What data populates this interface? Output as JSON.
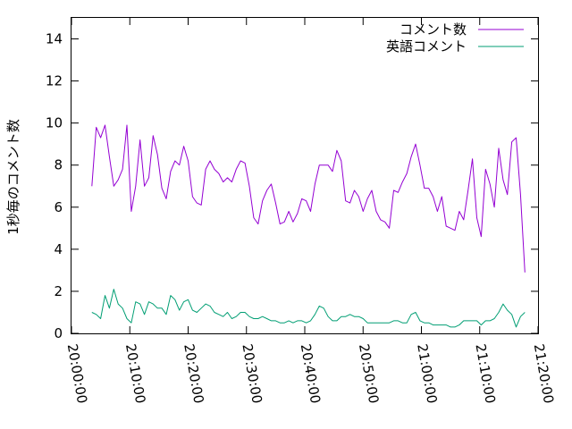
{
  "chart_data": {
    "type": "line",
    "title": "",
    "xlabel": "",
    "ylabel": "1秒毎のコメント数",
    "ylim": [
      0,
      15
    ],
    "yticks": [
      "0",
      "2",
      "4",
      "6",
      "8",
      "10",
      "12",
      "14"
    ],
    "xlim": [
      "20:00:00",
      "21:20:00"
    ],
    "xticks": [
      "20:00:00",
      "20:10:00",
      "20:20:00",
      "20:30:00",
      "20:40:00",
      "20:50:00",
      "21:00:00",
      "21:10:00",
      "21:20:00"
    ],
    "grid": false,
    "legend_position": "top-right",
    "series": [
      {
        "name": "コメント数",
        "color": "#9400d3",
        "points": [
          [
            "20:03:30",
            7.0
          ],
          [
            "20:04:15",
            9.8
          ],
          [
            "20:05:00",
            9.3
          ],
          [
            "20:05:45",
            9.9
          ],
          [
            "20:06:30",
            8.4
          ],
          [
            "20:07:15",
            7.0
          ],
          [
            "20:08:00",
            7.3
          ],
          [
            "20:08:45",
            7.8
          ],
          [
            "20:09:30",
            9.9
          ],
          [
            "20:10:15",
            5.8
          ],
          [
            "20:11:00",
            7.0
          ],
          [
            "20:11:45",
            9.2
          ],
          [
            "20:12:30",
            7.0
          ],
          [
            "20:13:15",
            7.4
          ],
          [
            "20:14:00",
            9.4
          ],
          [
            "20:14:45",
            8.5
          ],
          [
            "20:15:30",
            6.9
          ],
          [
            "20:16:15",
            6.4
          ],
          [
            "20:17:00",
            7.7
          ],
          [
            "20:17:45",
            8.2
          ],
          [
            "20:18:30",
            8.0
          ],
          [
            "20:19:15",
            8.9
          ],
          [
            "20:20:00",
            8.2
          ],
          [
            "20:20:45",
            6.5
          ],
          [
            "20:21:30",
            6.2
          ],
          [
            "20:22:15",
            6.1
          ],
          [
            "20:23:00",
            7.8
          ],
          [
            "20:23:45",
            8.2
          ],
          [
            "20:24:30",
            7.8
          ],
          [
            "20:25:15",
            7.6
          ],
          [
            "20:26:00",
            7.2
          ],
          [
            "20:26:45",
            7.4
          ],
          [
            "20:27:30",
            7.2
          ],
          [
            "20:28:15",
            7.8
          ],
          [
            "20:29:00",
            8.2
          ],
          [
            "20:29:45",
            8.1
          ],
          [
            "20:30:30",
            7.0
          ],
          [
            "20:31:15",
            5.5
          ],
          [
            "20:32:00",
            5.2
          ],
          [
            "20:32:45",
            6.3
          ],
          [
            "20:33:30",
            6.8
          ],
          [
            "20:34:15",
            7.1
          ],
          [
            "20:35:00",
            6.2
          ],
          [
            "20:35:45",
            5.2
          ],
          [
            "20:36:30",
            5.3
          ],
          [
            "20:37:15",
            5.8
          ],
          [
            "20:38:00",
            5.3
          ],
          [
            "20:38:45",
            5.7
          ],
          [
            "20:39:30",
            6.4
          ],
          [
            "20:40:15",
            6.3
          ],
          [
            "20:41:00",
            5.8
          ],
          [
            "20:41:45",
            7.1
          ],
          [
            "20:42:30",
            8.0
          ],
          [
            "20:43:15",
            8.0
          ],
          [
            "20:44:00",
            8.0
          ],
          [
            "20:44:45",
            7.7
          ],
          [
            "20:45:30",
            8.7
          ],
          [
            "20:46:15",
            8.2
          ],
          [
            "20:47:00",
            6.3
          ],
          [
            "20:47:45",
            6.2
          ],
          [
            "20:48:30",
            6.8
          ],
          [
            "20:49:15",
            6.5
          ],
          [
            "20:50:00",
            5.8
          ],
          [
            "20:50:45",
            6.4
          ],
          [
            "20:51:30",
            6.8
          ],
          [
            "20:52:15",
            5.8
          ],
          [
            "20:53:00",
            5.4
          ],
          [
            "20:53:45",
            5.3
          ],
          [
            "20:54:30",
            5.0
          ],
          [
            "20:55:15",
            6.8
          ],
          [
            "20:56:00",
            6.7
          ],
          [
            "20:56:45",
            7.2
          ],
          [
            "20:57:30",
            7.6
          ],
          [
            "20:58:15",
            8.4
          ],
          [
            "20:59:00",
            9.0
          ],
          [
            "20:59:45",
            8.0
          ],
          [
            "21:00:30",
            6.9
          ],
          [
            "21:01:15",
            6.9
          ],
          [
            "21:02:00",
            6.5
          ],
          [
            "21:02:45",
            5.8
          ],
          [
            "21:03:30",
            6.5
          ],
          [
            "21:04:15",
            5.1
          ],
          [
            "21:05:00",
            5.0
          ],
          [
            "21:05:45",
            4.9
          ],
          [
            "21:06:30",
            5.8
          ],
          [
            "21:07:15",
            5.4
          ],
          [
            "21:08:00",
            6.8
          ],
          [
            "21:08:45",
            8.3
          ],
          [
            "21:09:30",
            5.5
          ],
          [
            "21:10:15",
            4.6
          ],
          [
            "21:11:00",
            7.8
          ],
          [
            "21:11:45",
            7.1
          ],
          [
            "21:12:30",
            6.0
          ],
          [
            "21:13:15",
            8.8
          ],
          [
            "21:14:00",
            7.3
          ],
          [
            "21:14:45",
            6.6
          ],
          [
            "21:15:30",
            9.1
          ],
          [
            "21:16:15",
            9.3
          ],
          [
            "21:17:00",
            6.6
          ],
          [
            "21:17:45",
            2.9
          ]
        ]
      },
      {
        "name": "英語コメント",
        "color": "#009e73",
        "points": [
          [
            "20:03:30",
            1.0
          ],
          [
            "20:04:15",
            0.9
          ],
          [
            "20:05:00",
            0.7
          ],
          [
            "20:05:45",
            1.8
          ],
          [
            "20:06:30",
            1.2
          ],
          [
            "20:07:15",
            2.1
          ],
          [
            "20:08:00",
            1.4
          ],
          [
            "20:08:45",
            1.2
          ],
          [
            "20:09:30",
            0.7
          ],
          [
            "20:10:15",
            0.5
          ],
          [
            "20:11:00",
            1.5
          ],
          [
            "20:11:45",
            1.4
          ],
          [
            "20:12:30",
            0.9
          ],
          [
            "20:13:15",
            1.5
          ],
          [
            "20:14:00",
            1.4
          ],
          [
            "20:14:45",
            1.2
          ],
          [
            "20:15:30",
            1.2
          ],
          [
            "20:16:15",
            0.9
          ],
          [
            "20:17:00",
            1.8
          ],
          [
            "20:17:45",
            1.6
          ],
          [
            "20:18:30",
            1.1
          ],
          [
            "20:19:15",
            1.5
          ],
          [
            "20:20:00",
            1.6
          ],
          [
            "20:20:45",
            1.1
          ],
          [
            "20:21:30",
            1.0
          ],
          [
            "20:22:15",
            1.2
          ],
          [
            "20:23:00",
            1.4
          ],
          [
            "20:23:45",
            1.3
          ],
          [
            "20:24:30",
            1.0
          ],
          [
            "20:25:15",
            0.9
          ],
          [
            "20:26:00",
            0.8
          ],
          [
            "20:26:45",
            1.0
          ],
          [
            "20:27:30",
            0.7
          ],
          [
            "20:28:15",
            0.8
          ],
          [
            "20:29:00",
            1.0
          ],
          [
            "20:29:45",
            1.0
          ],
          [
            "20:30:30",
            0.8
          ],
          [
            "20:31:15",
            0.7
          ],
          [
            "20:32:00",
            0.7
          ],
          [
            "20:32:45",
            0.8
          ],
          [
            "20:33:30",
            0.7
          ],
          [
            "20:34:15",
            0.6
          ],
          [
            "20:35:00",
            0.6
          ],
          [
            "20:35:45",
            0.5
          ],
          [
            "20:36:30",
            0.5
          ],
          [
            "20:37:15",
            0.6
          ],
          [
            "20:38:00",
            0.5
          ],
          [
            "20:38:45",
            0.6
          ],
          [
            "20:39:30",
            0.6
          ],
          [
            "20:40:15",
            0.5
          ],
          [
            "20:41:00",
            0.6
          ],
          [
            "20:41:45",
            0.9
          ],
          [
            "20:42:30",
            1.3
          ],
          [
            "20:43:15",
            1.2
          ],
          [
            "20:44:00",
            0.8
          ],
          [
            "20:44:45",
            0.6
          ],
          [
            "20:45:30",
            0.6
          ],
          [
            "20:46:15",
            0.8
          ],
          [
            "20:47:00",
            0.8
          ],
          [
            "20:47:45",
            0.9
          ],
          [
            "20:48:30",
            0.8
          ],
          [
            "20:49:15",
            0.8
          ],
          [
            "20:50:00",
            0.7
          ],
          [
            "20:50:45",
            0.5
          ],
          [
            "20:51:30",
            0.5
          ],
          [
            "20:52:15",
            0.5
          ],
          [
            "20:53:00",
            0.5
          ],
          [
            "20:53:45",
            0.5
          ],
          [
            "20:54:30",
            0.5
          ],
          [
            "20:55:15",
            0.6
          ],
          [
            "20:56:00",
            0.6
          ],
          [
            "20:56:45",
            0.5
          ],
          [
            "20:57:30",
            0.5
          ],
          [
            "20:58:15",
            0.9
          ],
          [
            "20:59:00",
            1.0
          ],
          [
            "20:59:45",
            0.6
          ],
          [
            "21:00:30",
            0.5
          ],
          [
            "21:01:15",
            0.5
          ],
          [
            "21:02:00",
            0.4
          ],
          [
            "21:02:45",
            0.4
          ],
          [
            "21:03:30",
            0.4
          ],
          [
            "21:04:15",
            0.4
          ],
          [
            "21:05:00",
            0.3
          ],
          [
            "21:05:45",
            0.3
          ],
          [
            "21:06:30",
            0.4
          ],
          [
            "21:07:15",
            0.6
          ],
          [
            "21:08:00",
            0.6
          ],
          [
            "21:08:45",
            0.6
          ],
          [
            "21:09:30",
            0.6
          ],
          [
            "21:10:15",
            0.4
          ],
          [
            "21:11:00",
            0.6
          ],
          [
            "21:11:45",
            0.6
          ],
          [
            "21:12:30",
            0.7
          ],
          [
            "21:13:15",
            1.0
          ],
          [
            "21:14:00",
            1.4
          ],
          [
            "21:14:45",
            1.1
          ],
          [
            "21:15:30",
            0.9
          ],
          [
            "21:16:15",
            0.3
          ],
          [
            "21:17:00",
            0.8
          ],
          [
            "21:17:45",
            1.0
          ]
        ]
      }
    ]
  }
}
